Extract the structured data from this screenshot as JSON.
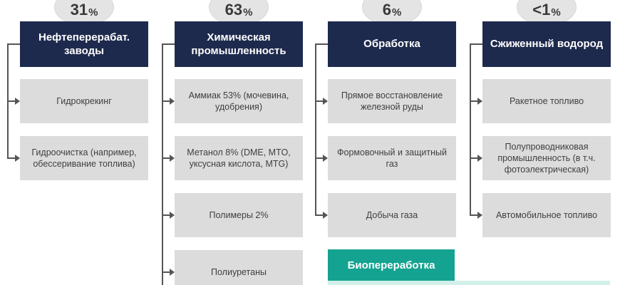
{
  "columns": [
    {
      "percent_num": "31",
      "percent_unit": "%",
      "title": "Нефтеперерабат. заводы",
      "items": [
        "Гидрокрекинг",
        "Гидроочистка (например, обессеривание топлива)"
      ]
    },
    {
      "percent_num": "63",
      "percent_unit": "%",
      "title": "Химическая промышленность",
      "items": [
        "Аммиак 53% (мочевина, удобрения)",
        "Метанол 8% (DME, MTO, уксусная кислота, MTG)",
        "Полимеры 2%",
        "Полиуретаны"
      ]
    },
    {
      "percent_num": "6",
      "percent_unit": "%",
      "title": "Обработка",
      "items": [
        "Прямое восстановление железной руды",
        "Формовочный и защитный газ",
        "Добыча газа"
      ]
    },
    {
      "percent_num": "<1",
      "percent_unit": "%",
      "title": "Сжиженный водород",
      "items": [
        "Ракетное топливо",
        "Полупроводниковая промышленность (в т.ч. фотоэлектрическая)",
        "Автомобильное топливо"
      ]
    }
  ],
  "bio": {
    "title": "Биопереработка"
  },
  "colors": {
    "header": "#1e2a4d",
    "item": "#dcdcdc",
    "bio": "#14a390",
    "badge": "#e4e4e4"
  }
}
